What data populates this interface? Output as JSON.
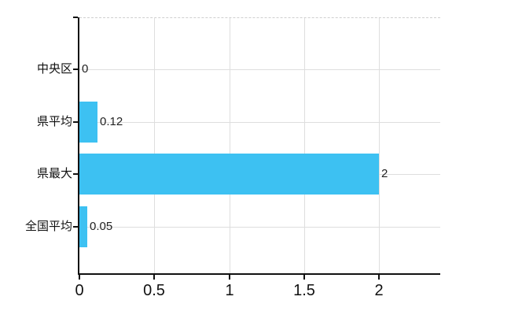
{
  "chart_data": {
    "type": "bar",
    "orientation": "horizontal",
    "title": "",
    "xlabel": "",
    "ylabel": "",
    "categories": [
      "中央区",
      "県平均",
      "県最大",
      "全国平均"
    ],
    "values": [
      0,
      0.12,
      2,
      0.05
    ],
    "value_labels": [
      "0",
      "0.12",
      "2",
      "0.05"
    ],
    "x_ticks": [
      {
        "value": 0,
        "label": "0"
      },
      {
        "value": 0.5,
        "label": "0.5"
      },
      {
        "value": 1,
        "label": "1"
      },
      {
        "value": 1.5,
        "label": "1.5"
      },
      {
        "value": 2,
        "label": "2"
      }
    ],
    "xlim": [
      0,
      2.41
    ],
    "grid": true,
    "legend": false,
    "colors": {
      "bar": "#3dc1f2",
      "grid_line": "#dedede",
      "top_border": "#cfcfcf",
      "axis_line": "#111111",
      "label_text": "#111111",
      "value_text": "#222222",
      "background": "#ffffff"
    }
  }
}
